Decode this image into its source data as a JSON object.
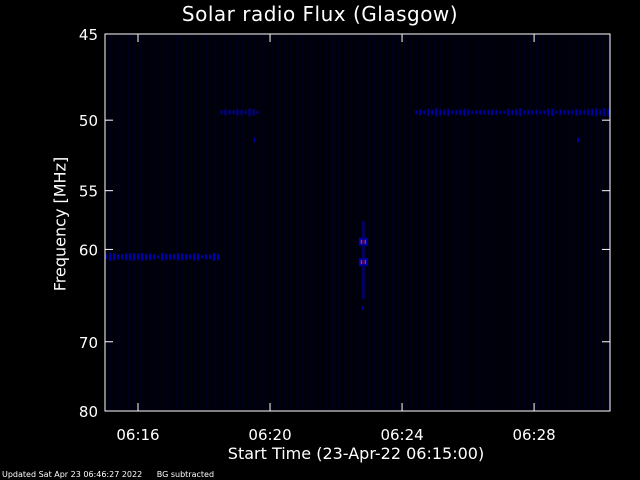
{
  "chart_data": {
    "type": "heatmap",
    "title": "Solar radio Flux (Glasgow)",
    "xlabel": "Start Time (23-Apr-22 06:15:00)",
    "ylabel": "Frequency [MHz]",
    "x_ticks": [
      "06:16",
      "06:20",
      "06:24",
      "06:28"
    ],
    "x_tick_minutes": [
      16,
      20,
      24,
      28
    ],
    "xlim_minutes": [
      15,
      30.3
    ],
    "y_ticks": [
      45,
      50,
      55,
      60,
      70,
      80
    ],
    "ylim_mhz": [
      45,
      80
    ],
    "y_scale": "reciprocal",
    "grid": false,
    "colors": {
      "background": "#000000",
      "low": "#0000c8",
      "high": "#ff2a2a",
      "axis": "#ffffff"
    },
    "features": [
      {
        "minute_start": 15.0,
        "minute_end": 18.5,
        "freq_mhz": 60.7,
        "intensity": 0.6
      },
      {
        "minute_start": 18.5,
        "minute_end": 19.7,
        "freq_mhz": 49.5,
        "intensity": 0.45
      },
      {
        "minute_start": 19.5,
        "minute_end": 19.6,
        "freq_mhz": 51.3,
        "intensity": 0.45
      },
      {
        "minute_start": 24.4,
        "minute_end": 30.3,
        "freq_mhz": 49.5,
        "intensity": 0.45
      },
      {
        "minute_start": 29.3,
        "minute_end": 29.4,
        "freq_mhz": 51.3,
        "intensity": 0.45
      },
      {
        "minute_start": 22.75,
        "minute_end": 22.9,
        "freq_mhz": 59.3,
        "intensity": 1.0
      },
      {
        "minute_start": 22.75,
        "minute_end": 22.9,
        "freq_mhz": 61.2,
        "intensity": 1.0
      },
      {
        "minute_start": 22.78,
        "minute_end": 22.86,
        "freq_mhz": 63.5,
        "intensity": 0.5
      },
      {
        "minute_start": 22.78,
        "minute_end": 22.86,
        "freq_mhz": 66.0,
        "intensity": 0.4
      }
    ]
  },
  "footer": {
    "updated": "Updated Sat Apr 23 06:46:27 2022",
    "note": "BG subtracted"
  }
}
